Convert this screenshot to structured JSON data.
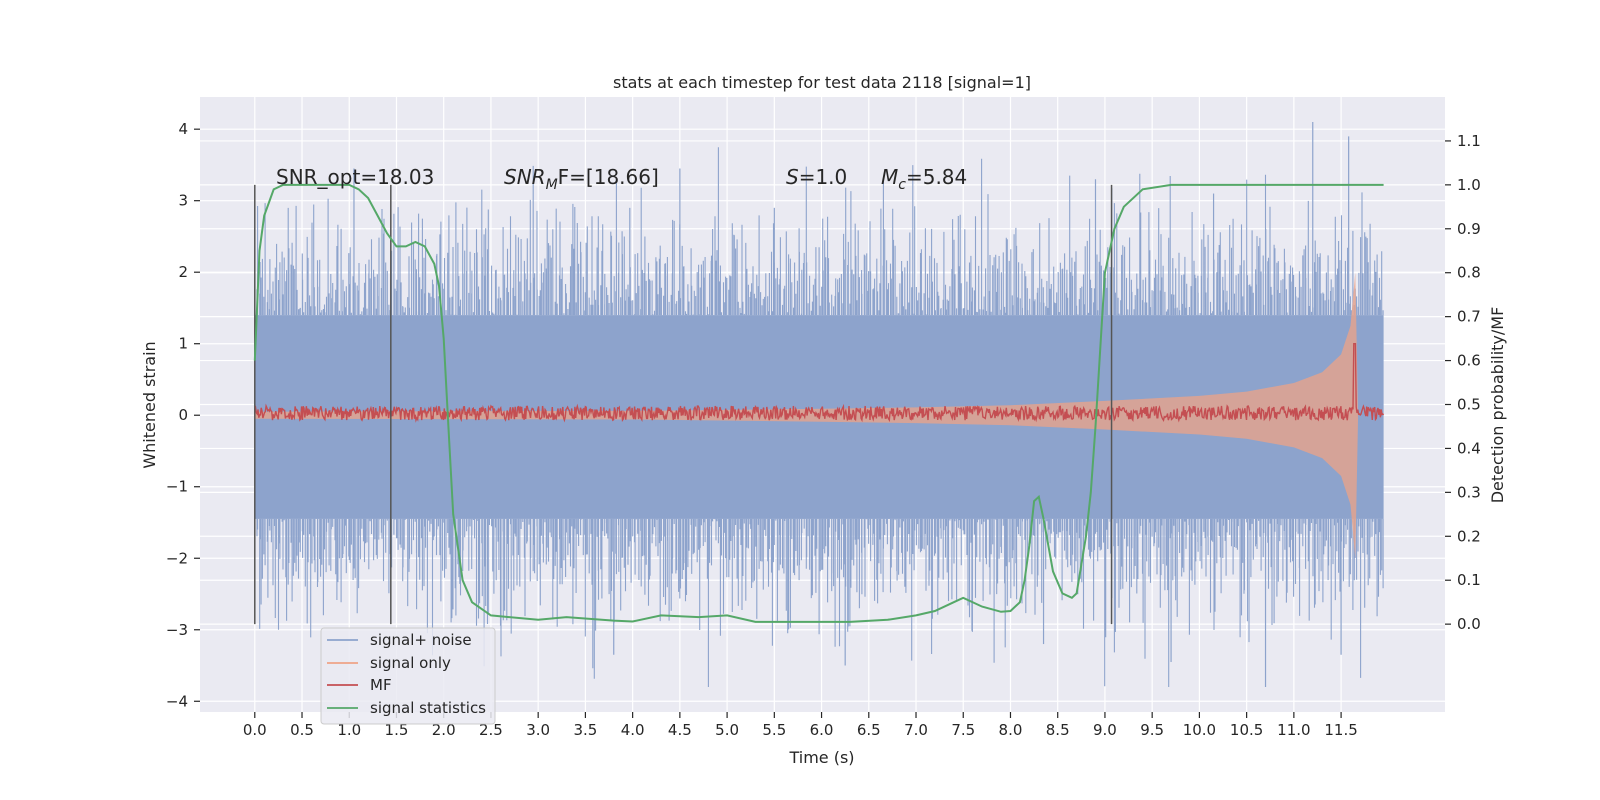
{
  "chart_data": {
    "type": "line",
    "title": "stats at each timestep for test data 2118 [signal=1]",
    "xlabel": "Time (s)",
    "ylabel": "Whitened strain",
    "ylabel_right": "Detection probability/MF",
    "xlim": [
      -0.58,
      12.6
    ],
    "ylim": [
      -4.15,
      4.45
    ],
    "ylim_right": [
      -0.2,
      1.2
    ],
    "x_ticks": [
      "0.0",
      "0.5",
      "1.0",
      "1.5",
      "2.0",
      "2.5",
      "3.0",
      "3.5",
      "4.0",
      "4.5",
      "5.0",
      "5.5",
      "6.0",
      "6.5",
      "7.0",
      "7.5",
      "8.0",
      "8.5",
      "9.0",
      "9.5",
      "10.0",
      "10.5",
      "11.0",
      "11.5"
    ],
    "y_ticks": [
      "4",
      "3",
      "2",
      "1",
      "0",
      "−1",
      "−2",
      "−3",
      "−4"
    ],
    "y_ticks_right": [
      "1.1",
      "1.0",
      "0.9",
      "0.8",
      "0.7",
      "0.6",
      "0.5",
      "0.4",
      "0.3",
      "0.2",
      "0.1",
      "0.0"
    ],
    "grid": true,
    "legend_position": "bottom-left",
    "annotations": {
      "snr_opt": "SNR_opt=18.03",
      "snr_mf_name": "SNR",
      "snr_mf_sub": "M",
      "snr_mf_rest": "F=[18.66]",
      "s_name": "S",
      "s_value": "=1.0",
      "mc_name": "M",
      "mc_sub": "c",
      "mc_value": "=5.84"
    },
    "vertical_markers": [
      0.0,
      1.44,
      9.07
    ],
    "colors": {
      "signal_noise": "#8da3cc",
      "signal_only": "#eea387",
      "mf": "#c44e52",
      "signal_statistics": "#55a868",
      "background": "#eaeaf2",
      "grid": "#ffffff",
      "marker": "#555555"
    },
    "series": [
      {
        "name": "signal+ noise",
        "envelope": {
          "x_range": [
            0.0,
            11.95
          ],
          "band": [
            -1.45,
            1.4
          ],
          "peak_range": [
            -3.8,
            4.1
          ]
        }
      },
      {
        "name": "signal only",
        "amplitude_envelope": {
          "x": [
            0.0,
            4.0,
            6.0,
            7.0,
            8.0,
            9.0,
            10.0,
            10.5,
            11.0,
            11.3,
            11.5,
            11.6,
            11.65,
            11.68
          ],
          "amp": [
            0.05,
            0.06,
            0.09,
            0.11,
            0.14,
            0.2,
            0.27,
            0.33,
            0.45,
            0.6,
            0.85,
            1.25,
            2.0,
            0.0
          ]
        }
      },
      {
        "name": "MF",
        "base_level": 0.03,
        "noise_amplitude": 0.1,
        "spike": {
          "x": 11.64,
          "y": 1.0
        }
      },
      {
        "name": "signal statistics",
        "axis": "right",
        "x": [
          0.0,
          0.05,
          0.1,
          0.15,
          0.2,
          0.3,
          0.5,
          0.8,
          1.0,
          1.1,
          1.2,
          1.3,
          1.4,
          1.5,
          1.6,
          1.7,
          1.8,
          1.9,
          1.95,
          2.0,
          2.05,
          2.1,
          2.2,
          2.3,
          2.5,
          3.0,
          3.3,
          3.8,
          4.0,
          4.3,
          4.7,
          5.0,
          5.3,
          5.8,
          6.3,
          6.7,
          7.0,
          7.2,
          7.4,
          7.5,
          7.7,
          7.9,
          8.0,
          8.1,
          8.15,
          8.2,
          8.25,
          8.3,
          8.35,
          8.45,
          8.55,
          8.65,
          8.7,
          8.8,
          8.85,
          8.9,
          9.0,
          9.1,
          9.2,
          9.4,
          9.7,
          10.0,
          11.0,
          11.5,
          11.95
        ],
        "values": [
          0.6,
          0.85,
          0.93,
          0.96,
          0.99,
          1.0,
          1.0,
          1.0,
          1.0,
          0.99,
          0.97,
          0.93,
          0.89,
          0.86,
          0.86,
          0.87,
          0.86,
          0.82,
          0.77,
          0.65,
          0.45,
          0.25,
          0.1,
          0.05,
          0.02,
          0.01,
          0.016,
          0.008,
          0.006,
          0.02,
          0.016,
          0.02,
          0.005,
          0.005,
          0.005,
          0.01,
          0.02,
          0.03,
          0.05,
          0.06,
          0.04,
          0.028,
          0.03,
          0.05,
          0.1,
          0.18,
          0.28,
          0.29,
          0.24,
          0.12,
          0.07,
          0.06,
          0.07,
          0.2,
          0.3,
          0.45,
          0.8,
          0.9,
          0.95,
          0.99,
          1.0,
          1.0,
          1.0,
          1.0,
          1.0
        ]
      }
    ]
  }
}
